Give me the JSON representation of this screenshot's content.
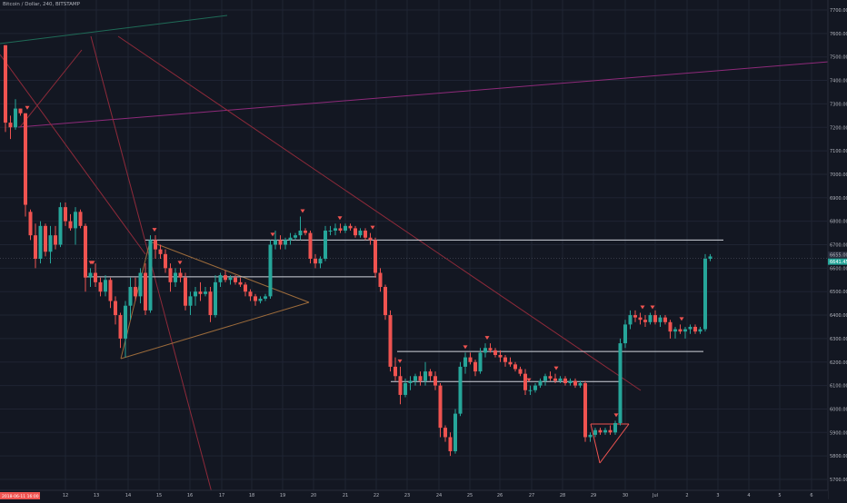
{
  "chart_data": {
    "type": "candlestick",
    "title": "Bitcoin / Dollar, 240, BITSTAMP",
    "colors": {
      "background": "#131722",
      "grid": "#1f2433",
      "up": "#26a69a",
      "down": "#ef5350",
      "axis_text": "#b2b5be",
      "resistance_line": "#d1d4dc",
      "trend_purple": "#8e2a7a",
      "trend_green": "#1f6b57",
      "triangle": "#9c6b3b",
      "red_line": "#8e2a3a"
    },
    "y_axis": {
      "min": 5700,
      "max": 7750,
      "ticks": [
        "7700.00",
        "7600.00",
        "7500.00",
        "7400.00",
        "7300.00",
        "7200.00",
        "7100.00",
        "7000.00",
        "6900.00",
        "6800.00",
        "6700.00",
        "6600.00",
        "6500.00",
        "6400.00",
        "6300.00",
        "6200.00",
        "6100.00",
        "6000.00",
        "5900.00",
        "5800.00",
        "5700.00"
      ],
      "last_price_label": "6641.45",
      "last_price": 6641.45,
      "high_label": "6655.00",
      "high_price": 6655
    },
    "x_axis": {
      "labels": [
        "12",
        "13",
        "14",
        "15",
        "16",
        "17",
        "18",
        "19",
        "20",
        "21",
        "22",
        "23",
        "24",
        "25",
        "26",
        "27",
        "28",
        "29",
        "30",
        "Jul",
        "2",
        "3",
        "4",
        "5",
        "6"
      ],
      "label_x": [
        72,
        106,
        141,
        175,
        209,
        244,
        277,
        311,
        345,
        380,
        414,
        448,
        483,
        517,
        550,
        585,
        619,
        653,
        688,
        721,
        756,
        790,
        824,
        858,
        893
      ],
      "first_label": "2018-06-11 16:00",
      "first_label_color": "#ef5350"
    },
    "candles": [
      [
        6.0,
        7550,
        7550,
        7180,
        7220
      ],
      [
        11.5,
        7220,
        7250,
        7150,
        7200
      ],
      [
        17.0,
        7200,
        7320,
        7190,
        7280
      ],
      [
        22.5,
        7280,
        7280,
        7250,
        7260
      ],
      [
        28.0,
        7260,
        7260,
        6820,
        6870
      ],
      [
        33.5,
        6840,
        6850,
        6720,
        6740
      ],
      [
        39.0,
        6740,
        6790,
        6600,
        6640
      ],
      [
        44.5,
        6640,
        6800,
        6620,
        6780
      ],
      [
        50.0,
        6780,
        6790,
        6650,
        6670
      ],
      [
        55.5,
        6670,
        6780,
        6620,
        6740
      ],
      [
        61.0,
        6740,
        6780,
        6680,
        6700
      ],
      [
        66.5,
        6700,
        6880,
        6690,
        6860
      ],
      [
        72.0,
        6860,
        6880,
        6780,
        6800
      ],
      [
        77.5,
        6800,
        6830,
        6760,
        6770
      ],
      [
        83.0,
        6770,
        6860,
        6700,
        6840
      ],
      [
        88.5,
        6840,
        6850,
        6770,
        6780
      ],
      [
        94.0,
        6780,
        6790,
        6500,
        6560
      ],
      [
        99.5,
        6560,
        6600,
        6520,
        6580
      ],
      [
        105.0,
        6580,
        6620,
        6520,
        6540
      ],
      [
        110.5,
        6540,
        6560,
        6480,
        6500
      ],
      [
        116.0,
        6500,
        6570,
        6480,
        6550
      ],
      [
        121.5,
        6550,
        6560,
        6430,
        6460
      ],
      [
        127.0,
        6460,
        6480,
        6360,
        6400
      ],
      [
        132.5,
        6400,
        6410,
        6260,
        6300
      ],
      [
        138.0,
        6300,
        6460,
        6220,
        6440
      ],
      [
        143.5,
        6440,
        6560,
        6380,
        6520
      ],
      [
        149.0,
        6520,
        6560,
        6460,
        6480
      ],
      [
        154.5,
        6480,
        6600,
        6450,
        6580
      ],
      [
        160.0,
        6580,
        6620,
        6400,
        6420
      ],
      [
        165.5,
        6420,
        6740,
        6410,
        6720
      ],
      [
        171.0,
        6720,
        6740,
        6640,
        6680
      ],
      [
        176.5,
        6680,
        6700,
        6640,
        6660
      ],
      [
        182.0,
        6660,
        6680,
        6580,
        6600
      ],
      [
        187.5,
        6600,
        6620,
        6500,
        6540
      ],
      [
        193.0,
        6540,
        6600,
        6520,
        6580
      ],
      [
        198.5,
        6580,
        6600,
        6540,
        6560
      ],
      [
        204.0,
        6560,
        6580,
        6420,
        6440
      ],
      [
        209.5,
        6440,
        6500,
        6400,
        6480
      ],
      [
        215.0,
        6480,
        6520,
        6440,
        6500
      ],
      [
        220.5,
        6500,
        6540,
        6460,
        6490
      ],
      [
        226.0,
        6490,
        6520,
        6480,
        6500
      ],
      [
        231.5,
        6500,
        6520,
        6370,
        6400
      ],
      [
        237.0,
        6400,
        6570,
        6390,
        6540
      ],
      [
        242.5,
        6540,
        6580,
        6520,
        6570
      ],
      [
        248.0,
        6570,
        6590,
        6540,
        6550
      ],
      [
        253.5,
        6550,
        6570,
        6530,
        6560
      ],
      [
        259.0,
        6560,
        6570,
        6530,
        6540
      ],
      [
        264.5,
        6540,
        6560,
        6520,
        6530
      ],
      [
        270.0,
        6530,
        6540,
        6480,
        6500
      ],
      [
        275.5,
        6500,
        6510,
        6460,
        6480
      ],
      [
        281.0,
        6480,
        6490,
        6440,
        6460
      ],
      [
        286.5,
        6460,
        6480,
        6450,
        6470
      ],
      [
        292.0,
        6470,
        6490,
        6460,
        6480
      ],
      [
        297.5,
        6480,
        6720,
        6470,
        6700
      ],
      [
        303.0,
        6700,
        6760,
        6680,
        6720
      ],
      [
        308.5,
        6720,
        6740,
        6680,
        6700
      ],
      [
        314.0,
        6700,
        6730,
        6680,
        6720
      ],
      [
        319.5,
        6720,
        6750,
        6700,
        6730
      ],
      [
        325.0,
        6730,
        6750,
        6720,
        6740
      ],
      [
        330.5,
        6740,
        6820,
        6720,
        6760
      ],
      [
        336.0,
        6760,
        6770,
        6740,
        6750
      ],
      [
        341.5,
        6750,
        6760,
        6620,
        6640
      ],
      [
        347.0,
        6640,
        6660,
        6600,
        6620
      ],
      [
        352.5,
        6620,
        6650,
        6600,
        6640
      ],
      [
        358.0,
        6640,
        6780,
        6630,
        6760
      ],
      [
        363.5,
        6760,
        6780,
        6740,
        6760
      ],
      [
        369.0,
        6760,
        6790,
        6740,
        6770
      ],
      [
        374.5,
        6770,
        6790,
        6750,
        6760
      ],
      [
        380.0,
        6760,
        6790,
        6750,
        6780
      ],
      [
        385.5,
        6780,
        6790,
        6760,
        6770
      ],
      [
        391.0,
        6770,
        6780,
        6730,
        6740
      ],
      [
        396.5,
        6740,
        6770,
        6730,
        6760
      ],
      [
        402.0,
        6760,
        6770,
        6720,
        6730
      ],
      [
        407.5,
        6730,
        6750,
        6700,
        6720
      ],
      [
        413.0,
        6720,
        6730,
        6560,
        6580
      ],
      [
        418.5,
        6580,
        6600,
        6500,
        6520
      ],
      [
        424.0,
        6520,
        6530,
        6380,
        6400
      ],
      [
        429.5,
        6400,
        6420,
        6160,
        6180
      ],
      [
        435.0,
        6180,
        6220,
        6120,
        6140
      ],
      [
        440.5,
        6140,
        6180,
        6020,
        6060
      ],
      [
        446.0,
        6060,
        6130,
        6050,
        6110
      ],
      [
        451.5,
        6110,
        6140,
        6080,
        6120
      ],
      [
        457.0,
        6120,
        6150,
        6100,
        6140
      ],
      [
        462.5,
        6140,
        6160,
        6100,
        6120
      ],
      [
        468.0,
        6120,
        6200,
        6100,
        6160
      ],
      [
        473.5,
        6160,
        6170,
        6120,
        6140
      ],
      [
        479.0,
        6140,
        6160,
        6080,
        6100
      ],
      [
        484.5,
        6100,
        6110,
        5880,
        5920
      ],
      [
        490.0,
        5920,
        5930,
        5860,
        5880
      ],
      [
        495.5,
        5880,
        5900,
        5800,
        5820
      ],
      [
        501.0,
        5820,
        6000,
        5810,
        5980
      ],
      [
        506.5,
        5980,
        6200,
        5970,
        6180
      ],
      [
        512.0,
        6180,
        6240,
        6150,
        6220
      ],
      [
        517.5,
        6220,
        6240,
        6190,
        6200
      ],
      [
        523.0,
        6200,
        6210,
        6140,
        6160
      ],
      [
        528.5,
        6160,
        6260,
        6150,
        6240
      ],
      [
        534.0,
        6240,
        6280,
        6220,
        6260
      ],
      [
        539.5,
        6260,
        6280,
        6240,
        6250
      ],
      [
        545.0,
        6250,
        6260,
        6220,
        6230
      ],
      [
        550.5,
        6230,
        6250,
        6200,
        6220
      ],
      [
        556.0,
        6220,
        6230,
        6180,
        6200
      ],
      [
        561.5,
        6200,
        6220,
        6180,
        6190
      ],
      [
        567.0,
        6190,
        6200,
        6160,
        6170
      ],
      [
        572.5,
        6170,
        6180,
        6140,
        6150
      ],
      [
        578.0,
        6150,
        6170,
        6060,
        6080
      ],
      [
        583.5,
        6080,
        6100,
        6060,
        6080
      ],
      [
        589.0,
        6080,
        6110,
        6070,
        6100
      ],
      [
        594.5,
        6100,
        6130,
        6090,
        6120
      ],
      [
        600.0,
        6120,
        6150,
        6100,
        6140
      ],
      [
        605.5,
        6140,
        6160,
        6120,
        6130
      ],
      [
        611.0,
        6130,
        6150,
        6110,
        6120
      ],
      [
        616.5,
        6120,
        6140,
        6110,
        6130
      ],
      [
        622.0,
        6130,
        6140,
        6100,
        6110
      ],
      [
        627.5,
        6110,
        6130,
        6100,
        6120
      ],
      [
        633.0,
        6120,
        6130,
        6090,
        6100
      ],
      [
        638.5,
        6100,
        6120,
        6090,
        6110
      ],
      [
        644.0,
        6110,
        6120,
        5860,
        5880
      ],
      [
        649.5,
        5880,
        5900,
        5860,
        5890
      ],
      [
        655.0,
        5890,
        5920,
        5880,
        5910
      ],
      [
        660.5,
        5910,
        5920,
        5890,
        5900
      ],
      [
        666.0,
        5900,
        5920,
        5890,
        5910
      ],
      [
        671.5,
        5910,
        5930,
        5890,
        5900
      ],
      [
        677.0,
        5900,
        5950,
        5890,
        5940
      ],
      [
        682.5,
        5940,
        6300,
        5930,
        6280
      ],
      [
        688.0,
        6280,
        6380,
        6260,
        6360
      ],
      [
        693.5,
        6360,
        6420,
        6340,
        6400
      ],
      [
        699.0,
        6400,
        6420,
        6370,
        6390
      ],
      [
        704.5,
        6390,
        6410,
        6360,
        6380
      ],
      [
        710.0,
        6380,
        6400,
        6350,
        6370
      ],
      [
        715.5,
        6370,
        6410,
        6360,
        6400
      ],
      [
        721.0,
        6400,
        6420,
        6360,
        6370
      ],
      [
        726.5,
        6370,
        6400,
        6350,
        6390
      ],
      [
        732.0,
        6390,
        6400,
        6360,
        6370
      ],
      [
        737.5,
        6370,
        6380,
        6300,
        6330
      ],
      [
        743.0,
        6330,
        6350,
        6300,
        6340
      ],
      [
        748.5,
        6340,
        6360,
        6320,
        6330
      ],
      [
        754.0,
        6330,
        6350,
        6300,
        6340
      ],
      [
        759.5,
        6340,
        6360,
        6320,
        6350
      ],
      [
        765.0,
        6350,
        6360,
        6320,
        6330
      ],
      [
        770.5,
        6330,
        6350,
        6320,
        6340
      ],
      [
        776.0,
        6340,
        6660,
        6330,
        6640
      ],
      [
        781.5,
        6640,
        6660,
        6630,
        6650
      ]
    ],
    "horizontal_levels": [
      {
        "price": 6720,
        "x1": 160,
        "x2": 796
      },
      {
        "price": 6563,
        "x1": 95,
        "x2": 414
      },
      {
        "price": 6245,
        "x1": 437,
        "x2": 774
      },
      {
        "price": 6117,
        "x1": 430,
        "x2": 683
      }
    ],
    "arrow_markers": [
      30,
      100,
      102,
      170,
      198,
      300,
      333,
      374,
      410,
      440,
      512,
      536,
      582,
      612,
      678,
      707,
      718,
      750
    ]
  }
}
